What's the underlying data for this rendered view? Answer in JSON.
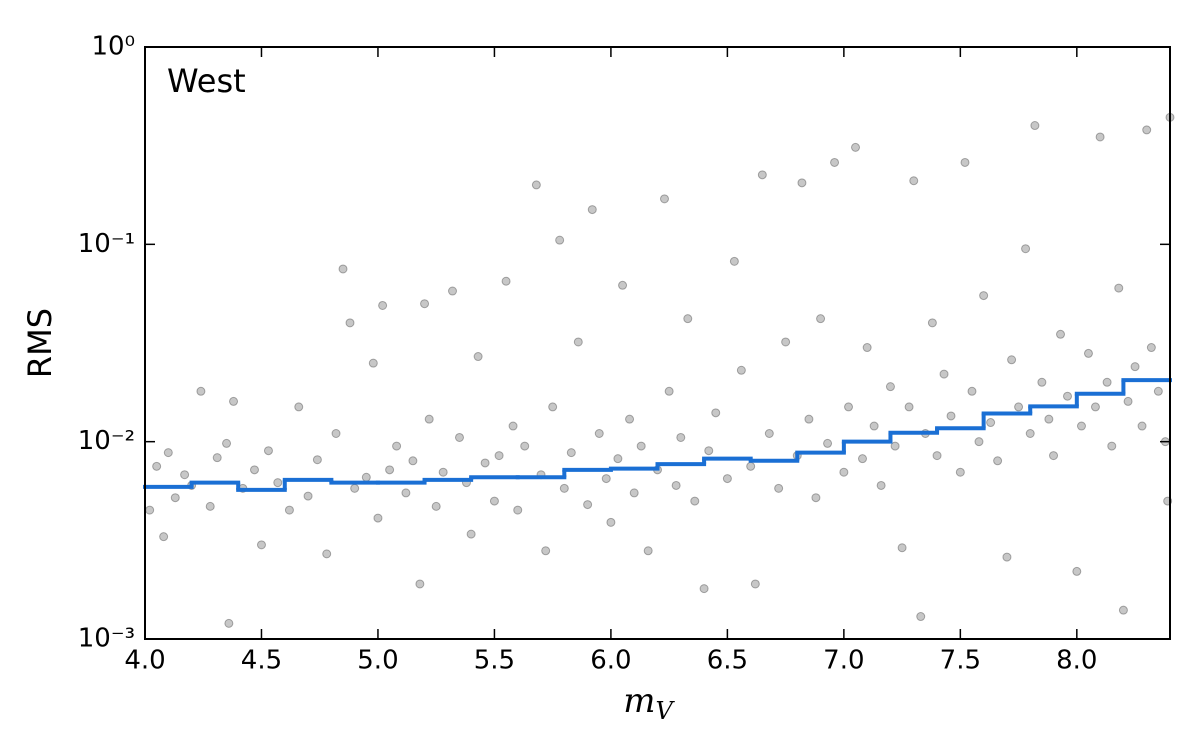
{
  "chart_data": {
    "type": "scatter",
    "annotation": "West",
    "x_label": "m",
    "x_label_sub": "V",
    "y_label": "RMS",
    "xlim": [
      4.0,
      8.4
    ],
    "ylim": [
      0.001,
      1
    ],
    "ylog": true,
    "xticks": [
      {
        "value": 4.0,
        "label": "4.0"
      },
      {
        "value": 4.5,
        "label": "4.5"
      },
      {
        "value": 5.0,
        "label": "5.0"
      },
      {
        "value": 5.5,
        "label": "5.5"
      },
      {
        "value": 6.0,
        "label": "6.0"
      },
      {
        "value": 6.5,
        "label": "6.5"
      },
      {
        "value": 7.0,
        "label": "7.0"
      },
      {
        "value": 7.5,
        "label": "7.5"
      },
      {
        "value": 8.0,
        "label": "8.0"
      }
    ],
    "yticks": [
      {
        "value": 0.001,
        "label": "10⁻³"
      },
      {
        "value": 0.01,
        "label": "10⁻²"
      },
      {
        "value": 0.1,
        "label": "10⁻¹"
      },
      {
        "value": 1,
        "label": "10⁰"
      }
    ],
    "series": [
      {
        "kind": "scatter",
        "color": "#000000",
        "x": [
          4.02,
          4.05,
          4.08,
          4.1,
          4.13,
          4.17,
          4.2,
          4.24,
          4.28,
          4.31,
          4.35,
          4.38,
          4.36,
          4.42,
          4.47,
          4.5,
          4.53,
          4.57,
          4.62,
          4.66,
          4.7,
          4.74,
          4.78,
          4.82,
          4.85,
          4.88,
          4.9,
          4.95,
          4.98,
          5.0,
          5.02,
          5.05,
          5.08,
          5.12,
          5.15,
          5.18,
          5.2,
          5.22,
          5.25,
          5.28,
          5.32,
          5.35,
          5.38,
          5.4,
          5.43,
          5.46,
          5.5,
          5.52,
          5.55,
          5.58,
          5.6,
          5.63,
          5.68,
          5.7,
          5.72,
          5.75,
          5.78,
          5.8,
          5.83,
          5.86,
          5.9,
          5.92,
          5.95,
          5.98,
          6.0,
          6.03,
          6.05,
          6.08,
          6.1,
          6.13,
          6.16,
          6.2,
          6.23,
          6.25,
          6.28,
          6.3,
          6.33,
          6.36,
          6.4,
          6.42,
          6.45,
          6.5,
          6.53,
          6.56,
          6.6,
          6.62,
          6.65,
          6.68,
          6.72,
          6.75,
          6.8,
          6.82,
          6.85,
          6.88,
          6.9,
          6.93,
          6.96,
          7.0,
          7.02,
          7.05,
          7.08,
          7.1,
          7.13,
          7.16,
          7.2,
          7.22,
          7.25,
          7.28,
          7.3,
          7.33,
          7.35,
          7.38,
          7.4,
          7.43,
          7.46,
          7.5,
          7.52,
          7.55,
          7.58,
          7.6,
          7.63,
          7.66,
          7.7,
          7.72,
          7.75,
          7.78,
          7.8,
          7.82,
          7.85,
          7.88,
          7.9,
          7.93,
          7.96,
          8.0,
          8.02,
          8.05,
          8.08,
          8.1,
          8.13,
          8.15,
          8.18,
          8.2,
          8.22,
          8.25,
          8.28,
          8.3,
          8.32,
          8.35,
          8.38,
          8.4,
          8.39
        ],
        "values": [
          0.0045,
          0.0075,
          0.0033,
          0.0088,
          0.0052,
          0.0068,
          0.006,
          0.018,
          0.0047,
          0.0083,
          0.0098,
          0.016,
          0.0012,
          0.0058,
          0.0072,
          0.003,
          0.009,
          0.0062,
          0.0045,
          0.015,
          0.0053,
          0.0081,
          0.0027,
          0.011,
          0.075,
          0.04,
          0.0058,
          0.0066,
          0.025,
          0.0041,
          0.049,
          0.0072,
          0.0095,
          0.0055,
          0.008,
          0.0019,
          0.05,
          0.013,
          0.0047,
          0.007,
          0.058,
          0.0105,
          0.0062,
          0.0034,
          0.027,
          0.0078,
          0.005,
          0.0085,
          0.065,
          0.012,
          0.0045,
          0.0095,
          0.2,
          0.0068,
          0.0028,
          0.015,
          0.105,
          0.0058,
          0.0088,
          0.032,
          0.0048,
          0.15,
          0.011,
          0.0065,
          0.0039,
          0.0082,
          0.062,
          0.013,
          0.0055,
          0.0095,
          0.0028,
          0.0072,
          0.17,
          0.018,
          0.006,
          0.0105,
          0.042,
          0.005,
          0.0018,
          0.009,
          0.014,
          0.0065,
          0.082,
          0.023,
          0.0075,
          0.0019,
          0.225,
          0.011,
          0.0058,
          0.032,
          0.0085,
          0.205,
          0.013,
          0.0052,
          0.042,
          0.0098,
          0.26,
          0.007,
          0.015,
          0.31,
          0.0082,
          0.03,
          0.012,
          0.006,
          0.019,
          0.0095,
          0.0029,
          0.015,
          0.21,
          0.0013,
          0.011,
          0.04,
          0.0085,
          0.022,
          0.0135,
          0.007,
          0.26,
          0.018,
          0.01,
          0.055,
          0.0125,
          0.008,
          0.0026,
          0.026,
          0.015,
          0.095,
          0.011,
          0.4,
          0.02,
          0.013,
          0.0085,
          0.035,
          0.017,
          0.0022,
          0.012,
          0.028,
          0.015,
          0.35,
          0.02,
          0.0095,
          0.06,
          0.0014,
          0.016,
          0.024,
          0.012,
          0.38,
          0.03,
          0.018,
          0.01,
          0.44,
          0.005
        ]
      },
      {
        "kind": "step",
        "color": "#1a6fd4",
        "bins": [
          4.0,
          4.2,
          4.4,
          4.6,
          4.8,
          5.0,
          5.2,
          5.4,
          5.6,
          5.8,
          6.0,
          6.2,
          6.4,
          6.6,
          6.8,
          7.0,
          7.2,
          7.4,
          7.6,
          7.8,
          8.0,
          8.2,
          8.4
        ],
        "values": [
          0.0059,
          0.0062,
          0.0057,
          0.0064,
          0.0062,
          0.0062,
          0.0064,
          0.0066,
          0.0066,
          0.0072,
          0.0073,
          0.0077,
          0.0082,
          0.008,
          0.0088,
          0.01,
          0.0111,
          0.0117,
          0.0139,
          0.0151,
          0.0175,
          0.0205
        ]
      }
    ]
  }
}
